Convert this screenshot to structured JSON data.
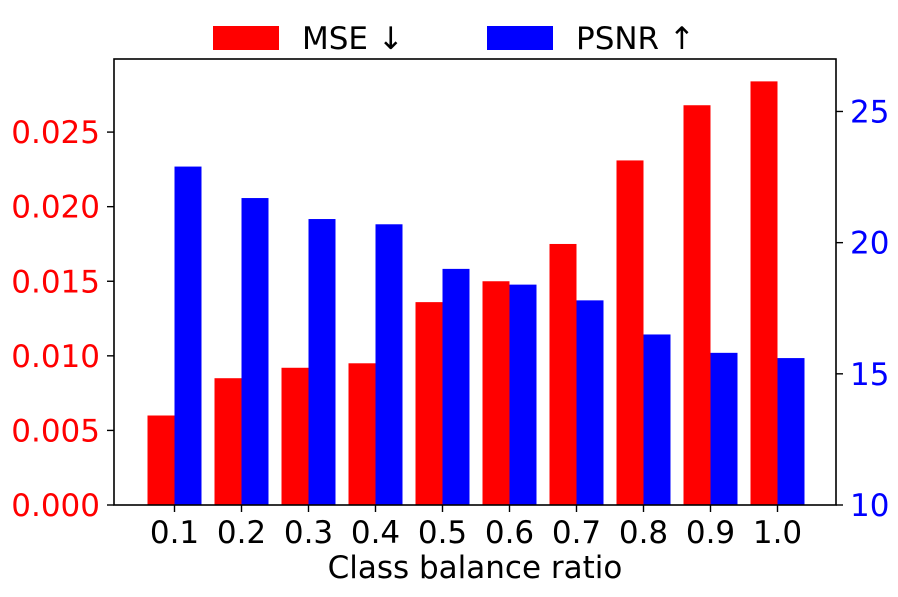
{
  "chart_data": {
    "type": "bar",
    "xlabel": "Class balance ratio",
    "categories": [
      "0.1",
      "0.2",
      "0.3",
      "0.4",
      "0.5",
      "0.6",
      "0.7",
      "0.8",
      "0.9",
      "1.0"
    ],
    "legend_position": "top-center",
    "grid": false,
    "series": [
      {
        "name": "MSE  ↓",
        "color": "#ff0000",
        "axis": "left",
        "values": [
          0.006,
          0.0085,
          0.0092,
          0.0095,
          0.0136,
          0.015,
          0.0175,
          0.0231,
          0.0268,
          0.0284
        ]
      },
      {
        "name": "PSNR  ↑",
        "color": "#0000ff",
        "axis": "right",
        "values": [
          22.9,
          21.7,
          20.9,
          20.7,
          19.0,
          18.4,
          17.8,
          16.5,
          15.8,
          15.6
        ]
      }
    ],
    "y_left": {
      "ylim": [
        0,
        0.0299
      ],
      "ticks": [
        0.0,
        0.005,
        0.01,
        0.015,
        0.02,
        0.025
      ],
      "tick_labels": [
        "0.000",
        "0.005",
        "0.010",
        "0.015",
        "0.020",
        "0.025"
      ],
      "color": "#ff0000"
    },
    "y_right": {
      "ylim": [
        10,
        27
      ],
      "ticks": [
        10,
        15,
        20,
        25
      ],
      "tick_labels": [
        "10",
        "15",
        "20",
        "25"
      ],
      "color": "#0000ff"
    }
  }
}
